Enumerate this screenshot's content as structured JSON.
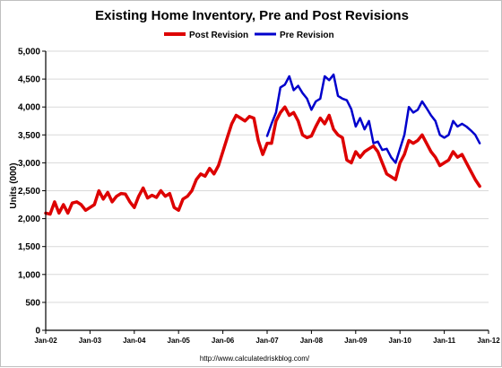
{
  "chart_data": {
    "type": "line",
    "title": "Existing Home Inventory, Pre and Post Revisions",
    "ylabel": "Units (000)",
    "xlabel": "",
    "source": "http://www.calculatedriskblog.com/",
    "ylim": [
      0,
      5000
    ],
    "y_ticks": [
      "0",
      "500",
      "1,000",
      "1,500",
      "2,000",
      "2,500",
      "3,000",
      "3,500",
      "4,000",
      "4,500",
      "5,000"
    ],
    "x_ticks": [
      "Jan-02",
      "Jan-03",
      "Jan-04",
      "Jan-05",
      "Jan-06",
      "Jan-07",
      "Jan-08",
      "Jan-09",
      "Jan-10",
      "Jan-11",
      "Jan-12"
    ],
    "xlim": [
      2002.0,
      2012.0
    ],
    "grid": true,
    "legend_position": "top-center",
    "colors": {
      "Post Revision": "#dd0000",
      "Pre Revision": "#0000cc"
    },
    "series": [
      {
        "name": "Pre Revision",
        "x": [
          2007.0,
          2007.1,
          2007.2,
          2007.3,
          2007.4,
          2007.5,
          2007.6,
          2007.7,
          2007.8,
          2007.9,
          2008.0,
          2008.1,
          2008.2,
          2008.3,
          2008.4,
          2008.5,
          2008.6,
          2008.7,
          2008.8,
          2008.9,
          2009.0,
          2009.1,
          2009.2,
          2009.3,
          2009.4,
          2009.5,
          2009.6,
          2009.7,
          2009.8,
          2009.9,
          2010.0,
          2010.1,
          2010.2,
          2010.3,
          2010.4,
          2010.5,
          2010.6,
          2010.7,
          2010.8,
          2010.9,
          2011.0,
          2011.1,
          2011.2,
          2011.3,
          2011.4,
          2011.5,
          2011.6,
          2011.7,
          2011.8
        ],
        "values": [
          3480,
          3700,
          3900,
          4350,
          4400,
          4550,
          4300,
          4380,
          4250,
          4150,
          3950,
          4100,
          4150,
          4550,
          4480,
          4580,
          4200,
          4150,
          4120,
          3960,
          3650,
          3800,
          3600,
          3750,
          3350,
          3380,
          3230,
          3250,
          3100,
          3000,
          3250,
          3500,
          4000,
          3900,
          3950,
          4100,
          3980,
          3850,
          3750,
          3500,
          3450,
          3500,
          3750,
          3650,
          3700,
          3650,
          3580,
          3500,
          3350
        ]
      },
      {
        "name": "Post Revision",
        "x": [
          2002.0,
          2002.1,
          2002.2,
          2002.3,
          2002.4,
          2002.5,
          2002.6,
          2002.7,
          2002.8,
          2002.9,
          2003.0,
          2003.1,
          2003.2,
          2003.3,
          2003.4,
          2003.5,
          2003.6,
          2003.7,
          2003.8,
          2003.9,
          2004.0,
          2004.1,
          2004.2,
          2004.3,
          2004.4,
          2004.5,
          2004.6,
          2004.7,
          2004.8,
          2004.9,
          2005.0,
          2005.1,
          2005.2,
          2005.3,
          2005.4,
          2005.5,
          2005.6,
          2005.7,
          2005.8,
          2005.9,
          2006.0,
          2006.1,
          2006.2,
          2006.3,
          2006.4,
          2006.5,
          2006.6,
          2006.7,
          2006.8,
          2006.9,
          2007.0,
          2007.1,
          2007.2,
          2007.3,
          2007.4,
          2007.5,
          2007.6,
          2007.7,
          2007.8,
          2007.9,
          2008.0,
          2008.1,
          2008.2,
          2008.3,
          2008.4,
          2008.5,
          2008.6,
          2008.7,
          2008.8,
          2008.9,
          2009.0,
          2009.1,
          2009.2,
          2009.3,
          2009.4,
          2009.5,
          2009.6,
          2009.7,
          2009.8,
          2009.9,
          2010.0,
          2010.1,
          2010.2,
          2010.3,
          2010.4,
          2010.5,
          2010.6,
          2010.7,
          2010.8,
          2010.9,
          2011.0,
          2011.1,
          2011.2,
          2011.3,
          2011.4,
          2011.5,
          2011.6,
          2011.7,
          2011.8
        ],
        "values": [
          2100,
          2080,
          2300,
          2100,
          2250,
          2100,
          2280,
          2300,
          2250,
          2150,
          2200,
          2250,
          2500,
          2350,
          2470,
          2300,
          2400,
          2450,
          2440,
          2300,
          2200,
          2400,
          2550,
          2370,
          2420,
          2380,
          2500,
          2400,
          2450,
          2200,
          2150,
          2350,
          2400,
          2500,
          2700,
          2800,
          2760,
          2900,
          2800,
          2950,
          3200,
          3450,
          3700,
          3850,
          3800,
          3750,
          3830,
          3800,
          3400,
          3150,
          3350,
          3350,
          3750,
          3900,
          4000,
          3850,
          3900,
          3750,
          3500,
          3450,
          3480,
          3650,
          3800,
          3700,
          3850,
          3600,
          3500,
          3450,
          3050,
          3000,
          3200,
          3100,
          3200,
          3250,
          3300,
          3200,
          3000,
          2800,
          2750,
          2700,
          3000,
          3150,
          3400,
          3350,
          3400,
          3500,
          3350,
          3200,
          3100,
          2950,
          3000,
          3050,
          3200,
          3100,
          3150,
          3000,
          2850,
          2700,
          2580
        ]
      }
    ]
  }
}
